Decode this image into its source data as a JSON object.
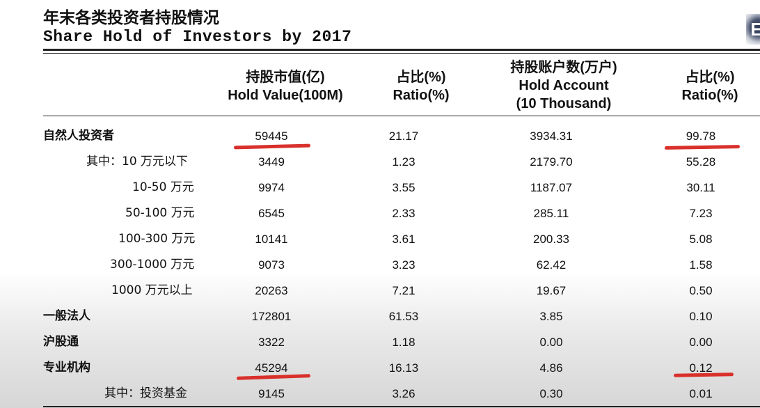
{
  "title_cn": "年末各类投资者持股情况",
  "title_en": "Share Hold of Investors by 2017",
  "logo_glyph": "E",
  "headers": [
    {
      "cn": "持股市值(亿)",
      "en": "Hold Value(100M)",
      "en2": ""
    },
    {
      "cn": "占比(%)",
      "en": "Ratio(%)",
      "en2": ""
    },
    {
      "cn": "持股账户数(万户)",
      "en": "Hold Account",
      "en2": "(10 Thousand)"
    },
    {
      "cn": "占比(%)",
      "en": "Ratio(%)",
      "en2": ""
    }
  ],
  "rows": [
    {
      "label": "自然人投资者",
      "value": "59445",
      "ratio": "21.17",
      "accounts": "3934.31",
      "acct_ratio": "99.78"
    },
    {
      "label": "其中：10 万元以下",
      "value": "3449",
      "ratio": "1.23",
      "accounts": "2179.70",
      "acct_ratio": "55.28"
    },
    {
      "label": "10-50 万元",
      "value": "9974",
      "ratio": "3.55",
      "accounts": "1187.07",
      "acct_ratio": "30.11"
    },
    {
      "label": "50-100 万元",
      "value": "6545",
      "ratio": "2.33",
      "accounts": "285.11",
      "acct_ratio": "7.23"
    },
    {
      "label": "100-300 万元",
      "value": "10141",
      "ratio": "3.61",
      "accounts": "200.33",
      "acct_ratio": "5.08"
    },
    {
      "label": "300-1000 万元",
      "value": "9073",
      "ratio": "3.23",
      "accounts": "62.42",
      "acct_ratio": "1.58"
    },
    {
      "label": "1000 万元以上",
      "value": "20263",
      "ratio": "7.21",
      "accounts": "19.67",
      "acct_ratio": "0.50"
    },
    {
      "label": "一般法人",
      "value": "172801",
      "ratio": "61.53",
      "accounts": "3.85",
      "acct_ratio": "0.10"
    },
    {
      "label": "沪股通",
      "value": "3322",
      "ratio": "1.18",
      "accounts": "0.00",
      "acct_ratio": "0.00"
    },
    {
      "label": "专业机构",
      "value": "45294",
      "ratio": "16.13",
      "accounts": "4.86",
      "acct_ratio": "0.12"
    },
    {
      "label": "其中：投资基金",
      "value": "9145",
      "ratio": "3.26",
      "accounts": "0.30",
      "acct_ratio": "0.01"
    }
  ],
  "annotation_color": "#d9302b"
}
